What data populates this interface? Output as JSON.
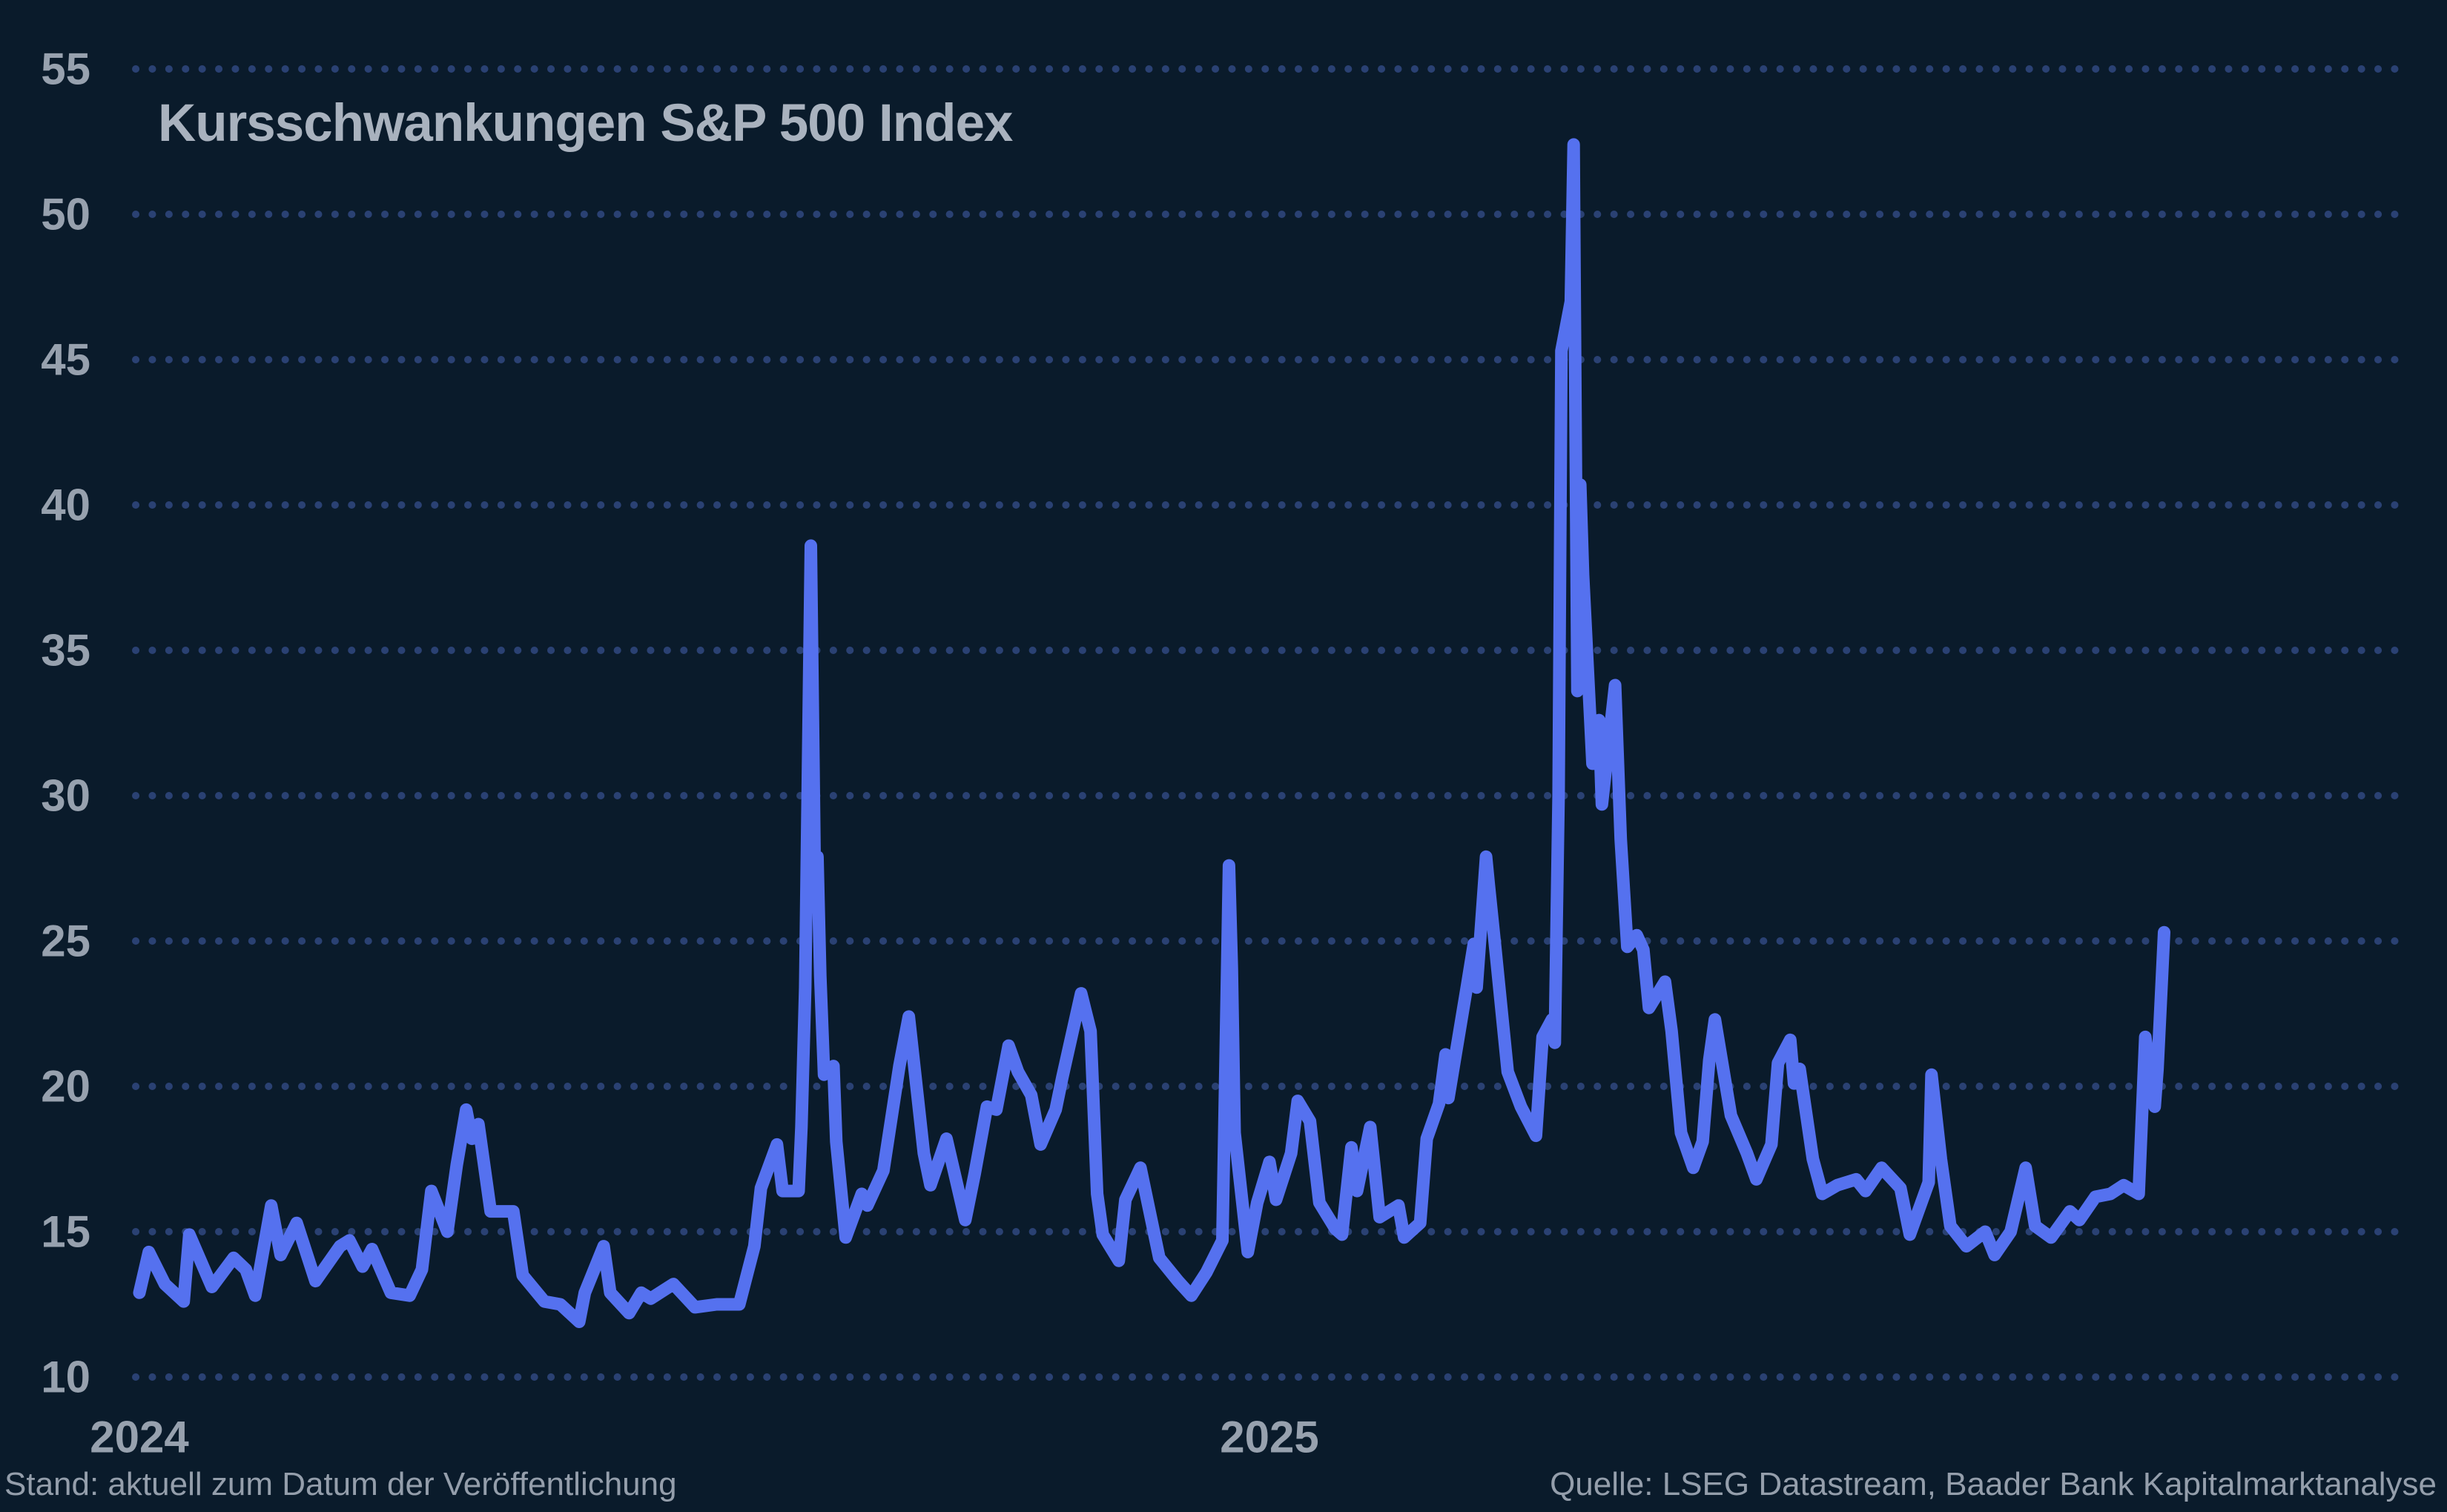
{
  "title": "Kursschwankungen S&P 500 Index",
  "footer": {
    "left": "Stand: aktuell zum Datum der Veröffentlichung",
    "right": "Quelle: LSEG Datastream, Baader Bank Kapitalmarktanalyse"
  },
  "colors": {
    "background": "#0a1b2b",
    "line": "#5571ef",
    "grid_dots": "#2a4173",
    "axis_labels": "#97a1ae",
    "title_text": "#a9b2be",
    "footer_text": "#949eab"
  },
  "chart_data": {
    "type": "line",
    "title": "Kursschwankungen S&P 500 Index",
    "xlabel": "",
    "ylabel": "",
    "ylim": [
      10,
      55
    ],
    "y_ticks": [
      55,
      50,
      45,
      40,
      35,
      30,
      25,
      20,
      15,
      10
    ],
    "x_ticks": [
      {
        "label": "2024",
        "month": 0
      },
      {
        "label": "2025",
        "month": 12
      }
    ],
    "grid": "horizontal-dotted",
    "legend": "none",
    "x_unit": "months since January 2024",
    "series": [
      {
        "points": [
          [
            0.0,
            12.9
          ],
          [
            0.1,
            14.3
          ],
          [
            0.27,
            13.2
          ],
          [
            0.47,
            12.6
          ],
          [
            0.53,
            14.9
          ],
          [
            0.77,
            13.1
          ],
          [
            1.0,
            14.1
          ],
          [
            1.13,
            13.7
          ],
          [
            1.23,
            12.8
          ],
          [
            1.4,
            15.9
          ],
          [
            1.5,
            14.2
          ],
          [
            1.67,
            15.3
          ],
          [
            1.87,
            13.3
          ],
          [
            2.13,
            14.5
          ],
          [
            2.23,
            14.7
          ],
          [
            2.37,
            13.8
          ],
          [
            2.47,
            14.4
          ],
          [
            2.67,
            12.9
          ],
          [
            2.87,
            12.8
          ],
          [
            3.0,
            13.7
          ],
          [
            3.1,
            16.4
          ],
          [
            3.27,
            15.0
          ],
          [
            3.37,
            17.3
          ],
          [
            3.47,
            19.2
          ],
          [
            3.53,
            18.2
          ],
          [
            3.6,
            18.7
          ],
          [
            3.73,
            15.7
          ],
          [
            3.97,
            15.7
          ],
          [
            4.07,
            13.5
          ],
          [
            4.3,
            12.6
          ],
          [
            4.47,
            12.5
          ],
          [
            4.67,
            11.9
          ],
          [
            4.73,
            12.9
          ],
          [
            4.93,
            14.5
          ],
          [
            5.0,
            12.9
          ],
          [
            5.2,
            12.2
          ],
          [
            5.33,
            12.9
          ],
          [
            5.43,
            12.7
          ],
          [
            5.67,
            13.2
          ],
          [
            5.9,
            12.4
          ],
          [
            6.13,
            12.5
          ],
          [
            6.37,
            12.5
          ],
          [
            6.53,
            14.5
          ],
          [
            6.6,
            16.5
          ],
          [
            6.77,
            18.0
          ],
          [
            6.83,
            16.4
          ],
          [
            7.0,
            16.4
          ],
          [
            7.03,
            18.6
          ],
          [
            7.07,
            23.4
          ],
          [
            7.13,
            38.6
          ],
          [
            7.17,
            27.7
          ],
          [
            7.2,
            27.9
          ],
          [
            7.23,
            23.8
          ],
          [
            7.27,
            20.4
          ],
          [
            7.37,
            20.7
          ],
          [
            7.4,
            18.1
          ],
          [
            7.5,
            14.8
          ],
          [
            7.67,
            16.3
          ],
          [
            7.73,
            15.9
          ],
          [
            7.9,
            17.1
          ],
          [
            8.07,
            20.7
          ],
          [
            8.17,
            22.4
          ],
          [
            8.33,
            17.7
          ],
          [
            8.4,
            16.6
          ],
          [
            8.57,
            18.2
          ],
          [
            8.77,
            15.4
          ],
          [
            8.87,
            17.0
          ],
          [
            9.0,
            19.3
          ],
          [
            9.1,
            19.2
          ],
          [
            9.23,
            21.4
          ],
          [
            9.33,
            20.5
          ],
          [
            9.47,
            19.7
          ],
          [
            9.57,
            18.0
          ],
          [
            9.73,
            19.2
          ],
          [
            9.8,
            20.3
          ],
          [
            10.0,
            23.2
          ],
          [
            10.1,
            21.9
          ],
          [
            10.17,
            16.3
          ],
          [
            10.23,
            14.9
          ],
          [
            10.4,
            14.0
          ],
          [
            10.47,
            16.1
          ],
          [
            10.63,
            17.2
          ],
          [
            10.83,
            14.1
          ],
          [
            11.03,
            13.3
          ],
          [
            11.17,
            12.8
          ],
          [
            11.33,
            13.6
          ],
          [
            11.5,
            14.7
          ],
          [
            11.57,
            27.6
          ],
          [
            11.6,
            24.1
          ],
          [
            11.63,
            18.4
          ],
          [
            11.77,
            14.3
          ],
          [
            11.87,
            16.0
          ],
          [
            12.0,
            17.4
          ],
          [
            12.07,
            16.1
          ],
          [
            12.23,
            17.7
          ],
          [
            12.3,
            19.5
          ],
          [
            12.43,
            18.8
          ],
          [
            12.53,
            16.0
          ],
          [
            12.7,
            15.1
          ],
          [
            12.77,
            14.9
          ],
          [
            12.87,
            17.9
          ],
          [
            12.93,
            16.4
          ],
          [
            13.07,
            18.6
          ],
          [
            13.17,
            15.5
          ],
          [
            13.37,
            15.9
          ],
          [
            13.43,
            14.8
          ],
          [
            13.6,
            15.3
          ],
          [
            13.67,
            18.2
          ],
          [
            13.8,
            19.4
          ],
          [
            13.87,
            21.1
          ],
          [
            13.9,
            19.6
          ],
          [
            14.1,
            23.5
          ],
          [
            14.17,
            24.9
          ],
          [
            14.2,
            23.4
          ],
          [
            14.3,
            27.9
          ],
          [
            14.33,
            26.9
          ],
          [
            14.4,
            24.7
          ],
          [
            14.53,
            20.5
          ],
          [
            14.67,
            19.3
          ],
          [
            14.83,
            18.3
          ],
          [
            14.9,
            21.7
          ],
          [
            15.0,
            22.3
          ],
          [
            15.03,
            21.5
          ],
          [
            15.07,
            30.0
          ],
          [
            15.1,
            45.3
          ],
          [
            15.2,
            47.0
          ],
          [
            15.23,
            52.4
          ],
          [
            15.27,
            33.6
          ],
          [
            15.3,
            40.7
          ],
          [
            15.33,
            37.6
          ],
          [
            15.43,
            31.1
          ],
          [
            15.5,
            32.6
          ],
          [
            15.53,
            29.7
          ],
          [
            15.67,
            33.8
          ],
          [
            15.73,
            28.5
          ],
          [
            15.8,
            24.8
          ],
          [
            15.9,
            25.2
          ],
          [
            15.97,
            24.7
          ],
          [
            16.03,
            22.7
          ],
          [
            16.2,
            23.6
          ],
          [
            16.27,
            21.9
          ],
          [
            16.37,
            18.4
          ],
          [
            16.5,
            17.2
          ],
          [
            16.6,
            18.1
          ],
          [
            16.67,
            20.9
          ],
          [
            16.73,
            22.3
          ],
          [
            16.9,
            19.0
          ],
          [
            17.07,
            17.7
          ],
          [
            17.17,
            16.8
          ],
          [
            17.33,
            18.0
          ],
          [
            17.4,
            20.8
          ],
          [
            17.53,
            21.6
          ],
          [
            17.57,
            20.1
          ],
          [
            17.63,
            20.6
          ],
          [
            17.77,
            17.5
          ],
          [
            17.87,
            16.3
          ],
          [
            18.03,
            16.6
          ],
          [
            18.23,
            16.8
          ],
          [
            18.33,
            16.4
          ],
          [
            18.5,
            17.2
          ],
          [
            18.7,
            16.5
          ],
          [
            18.8,
            14.9
          ],
          [
            19.0,
            16.7
          ],
          [
            19.03,
            20.4
          ],
          [
            19.13,
            17.5
          ],
          [
            19.23,
            15.2
          ],
          [
            19.4,
            14.5
          ],
          [
            19.6,
            15.0
          ],
          [
            19.7,
            14.2
          ],
          [
            19.87,
            15.0
          ],
          [
            20.03,
            17.2
          ],
          [
            20.13,
            15.2
          ],
          [
            20.3,
            14.8
          ],
          [
            20.5,
            15.7
          ],
          [
            20.6,
            15.4
          ],
          [
            20.77,
            16.2
          ],
          [
            20.93,
            16.3
          ],
          [
            21.07,
            16.6
          ],
          [
            21.23,
            16.3
          ],
          [
            21.3,
            21.7
          ],
          [
            21.4,
            19.3
          ],
          [
            21.43,
            20.6
          ],
          [
            21.5,
            25.3
          ]
        ]
      }
    ]
  }
}
